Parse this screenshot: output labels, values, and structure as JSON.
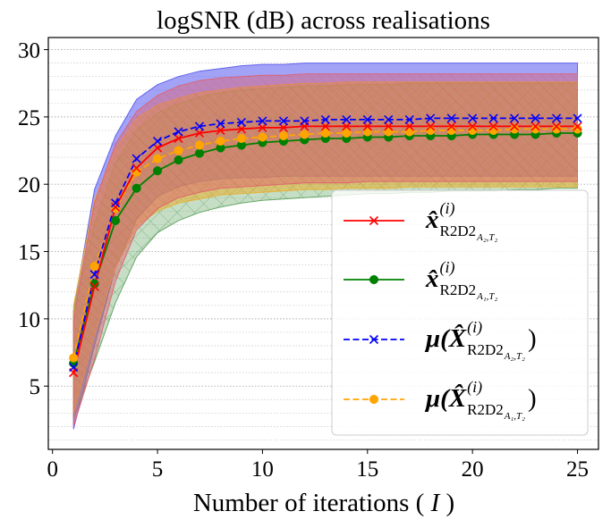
{
  "chart_data": {
    "type": "line",
    "title": "logSNR (dB) across realisations",
    "xlabel": "Number of iterations ( I )",
    "ylabel": "",
    "xlim": [
      -0.2,
      26.0
    ],
    "ylim": [
      0.3,
      30.9
    ],
    "x_ticks": [
      0,
      5,
      10,
      15,
      20,
      25
    ],
    "y_ticks": [
      5,
      10,
      15,
      20,
      25,
      30
    ],
    "grid": "horizontal dotted minor",
    "legend_position": "lower-right",
    "x": [
      1,
      2,
      3,
      4,
      5,
      6,
      7,
      8,
      9,
      10,
      11,
      12,
      13,
      14,
      15,
      16,
      17,
      18,
      19,
      20,
      21,
      22,
      23,
      24,
      25
    ],
    "series": [
      {
        "name": "x̂(i) R2D2 A2,T2",
        "legend": {
          "main": "x̂",
          "sup": "(i)",
          "sub": "R2D2",
          "subsub": "A₂,T₂"
        },
        "color": "#ff0000",
        "line": "solid",
        "marker": "x",
        "values": [
          6.0,
          12.4,
          18.3,
          21.2,
          22.7,
          23.4,
          23.8,
          24.0,
          24.1,
          24.2,
          24.2,
          24.3,
          24.3,
          24.3,
          24.3,
          24.3,
          24.3,
          24.3,
          24.3,
          24.3,
          24.3,
          24.3,
          24.3,
          24.3,
          24.3
        ],
        "band_upper": [
          10.0,
          18.6,
          23.0,
          25.4,
          26.6,
          27.3,
          27.7,
          27.9,
          28.0,
          28.1,
          28.1,
          28.2,
          28.2,
          28.2,
          28.2,
          28.2,
          28.2,
          28.2,
          28.2,
          28.2,
          28.2,
          28.2,
          28.2,
          28.2,
          28.2
        ],
        "band_lower": [
          2.0,
          7.0,
          12.8,
          16.6,
          18.2,
          19.0,
          19.4,
          19.7,
          19.8,
          19.9,
          20.0,
          20.1,
          20.1,
          20.1,
          20.2,
          20.2,
          20.2,
          20.2,
          20.2,
          20.2,
          20.2,
          20.2,
          20.2,
          20.2,
          20.2
        ]
      },
      {
        "name": "x̂(i) R2D2 A1,T2",
        "legend": {
          "main": "x̂",
          "sup": "(i)",
          "sub": "R2D2",
          "subsub": "A₁,T₂"
        },
        "color": "#008000",
        "line": "solid",
        "marker": "o",
        "values": [
          6.7,
          12.6,
          17.3,
          19.7,
          21.0,
          21.8,
          22.3,
          22.7,
          22.9,
          23.1,
          23.2,
          23.3,
          23.4,
          23.4,
          23.5,
          23.5,
          23.6,
          23.6,
          23.6,
          23.7,
          23.7,
          23.7,
          23.7,
          23.8,
          23.8
        ],
        "band_upper": [
          10.6,
          17.0,
          21.6,
          24.0,
          25.3,
          26.0,
          26.5,
          26.8,
          27.0,
          27.1,
          27.2,
          27.3,
          27.3,
          27.4,
          27.4,
          27.4,
          27.5,
          27.5,
          27.5,
          27.5,
          27.5,
          27.5,
          27.5,
          27.5,
          27.5
        ],
        "band_lower": [
          2.6,
          6.8,
          11.2,
          14.6,
          16.4,
          17.3,
          17.9,
          18.3,
          18.6,
          18.8,
          18.9,
          19.0,
          19.1,
          19.2,
          19.3,
          19.3,
          19.4,
          19.4,
          19.5,
          19.5,
          19.5,
          19.6,
          19.6,
          19.7,
          19.7
        ]
      },
      {
        "name": "μ(X̂(i) R2D2 A2,T2)",
        "legend": {
          "main": "μ(X̂",
          "sup": "(i)",
          "sub": "R2D2",
          "subsub": "A₂,T₂",
          "close": ")"
        },
        "color": "#0000ff",
        "line": "dashed",
        "marker": "x",
        "values": [
          6.4,
          13.3,
          18.6,
          21.9,
          23.2,
          23.9,
          24.3,
          24.5,
          24.6,
          24.7,
          24.7,
          24.7,
          24.8,
          24.8,
          24.8,
          24.8,
          24.8,
          24.9,
          24.9,
          24.9,
          24.9,
          24.9,
          24.9,
          24.9,
          24.9
        ],
        "band_upper": [
          10.6,
          19.6,
          23.6,
          26.3,
          27.4,
          28.0,
          28.4,
          28.6,
          28.8,
          28.9,
          28.9,
          29.0,
          29.0,
          29.0,
          29.0,
          29.0,
          29.0,
          29.0,
          29.0,
          29.0,
          29.0,
          29.0,
          29.0,
          29.0,
          29.0
        ],
        "band_lower": [
          1.8,
          8.0,
          13.8,
          17.4,
          19.1,
          19.8,
          20.2,
          20.4,
          20.5,
          20.5,
          20.6,
          20.6,
          20.6,
          20.6,
          20.6,
          20.6,
          20.6,
          20.6,
          20.6,
          20.6,
          20.6,
          20.6,
          20.6,
          20.6,
          20.6
        ]
      },
      {
        "name": "μ(X̂(i) R2D2 A1,T2)",
        "legend": {
          "main": "μ(X̂",
          "sup": "(i)",
          "sub": "R2D2",
          "subsub": "A₁,T₂",
          "close": ")"
        },
        "color": "#ffa500",
        "line": "dashed",
        "marker": "o",
        "values": [
          7.1,
          13.9,
          18.2,
          20.9,
          21.9,
          22.5,
          22.9,
          23.2,
          23.4,
          23.5,
          23.6,
          23.7,
          23.8,
          23.8,
          23.9,
          23.9,
          23.9,
          24.0,
          24.0,
          24.0,
          24.0,
          24.1,
          24.1,
          24.1,
          24.1
        ],
        "band_upper": [
          11.0,
          18.8,
          22.6,
          24.9,
          25.9,
          26.4,
          26.8,
          27.0,
          27.2,
          27.3,
          27.4,
          27.5,
          27.5,
          27.6,
          27.6,
          27.6,
          27.6,
          27.6,
          27.6,
          27.6,
          27.6,
          27.6,
          27.6,
          27.6,
          27.6
        ],
        "band_lower": [
          3.0,
          8.8,
          13.8,
          16.9,
          18.0,
          18.6,
          18.9,
          19.2,
          19.3,
          19.4,
          19.5,
          19.6,
          19.6,
          19.7,
          19.7,
          19.7,
          19.8,
          19.8,
          19.8,
          19.8,
          19.8,
          19.8,
          19.8,
          19.8,
          19.8
        ]
      }
    ]
  }
}
